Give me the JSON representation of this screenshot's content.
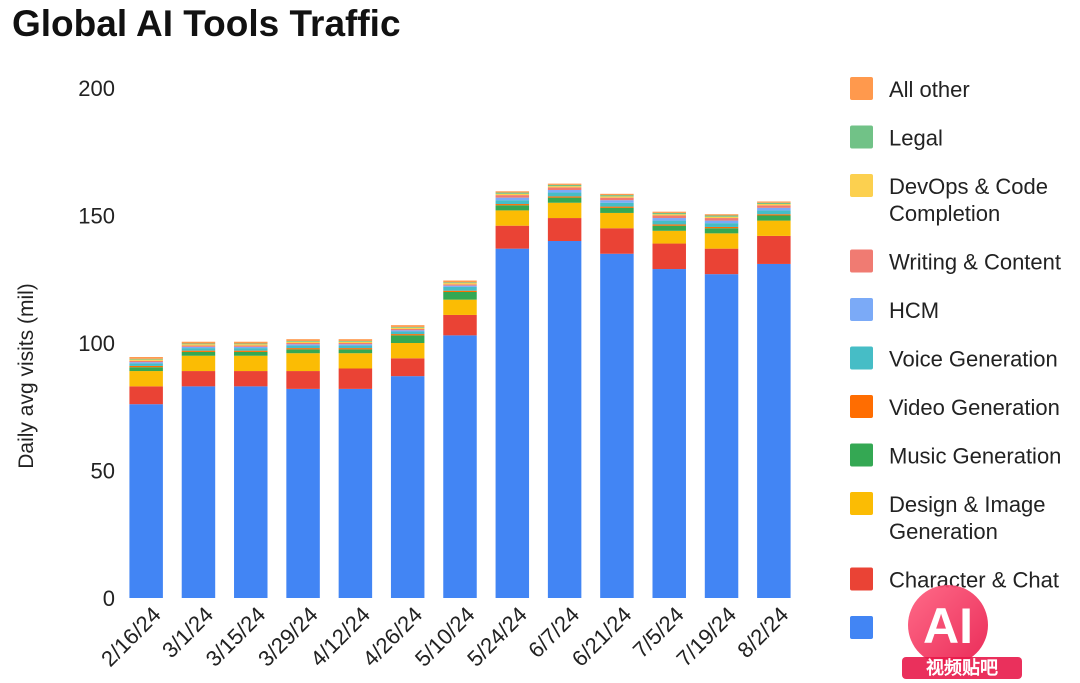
{
  "chart_data": {
    "type": "bar",
    "stacked": true,
    "title": "Global AI Tools Traffic",
    "ylabel": "Daily avg visits (mil)",
    "xlabel": "",
    "ylim": [
      0,
      200
    ],
    "yticks": [
      0,
      50,
      100,
      150,
      200
    ],
    "grid": false,
    "legend_position": "right",
    "categories": [
      "2/16/24",
      "3/1/24",
      "3/15/24",
      "3/29/24",
      "4/12/24",
      "4/26/24",
      "5/10/24",
      "5/24/24",
      "6/7/24",
      "6/21/24",
      "7/5/24",
      "7/19/24",
      "8/2/24"
    ],
    "series": [
      {
        "name": "",
        "color": "#4285f4",
        "values": [
          76,
          83,
          83,
          82,
          82,
          87,
          103,
          137,
          140,
          135,
          129,
          127,
          131
        ]
      },
      {
        "name": "Character & Chat",
        "color": "#ea4335",
        "values": [
          7,
          6,
          6,
          7,
          8,
          7,
          8,
          9,
          9,
          10,
          10,
          10,
          11
        ]
      },
      {
        "name": "Design & Image Generation",
        "color": "#fbbc04",
        "values": [
          6,
          6,
          6,
          7,
          6,
          6,
          6,
          6,
          6,
          6,
          5,
          6,
          6
        ]
      },
      {
        "name": "Music Generation",
        "color": "#34a853",
        "values": [
          1.5,
          1.5,
          1.5,
          1.5,
          1.5,
          3,
          3,
          2,
          2,
          2,
          2,
          2,
          2
        ]
      },
      {
        "name": "Video Generation",
        "color": "#ff6d01",
        "values": [
          0.5,
          0.5,
          0.5,
          0.5,
          0.5,
          0.5,
          0.5,
          0.5,
          0.5,
          0.5,
          0.5,
          0.5,
          0.5
        ]
      },
      {
        "name": "Voice Generation",
        "color": "#46bdc6",
        "values": [
          1,
          1,
          1,
          1,
          1,
          1,
          1.5,
          1.5,
          1.5,
          1.5,
          1.5,
          1.5,
          1.5
        ]
      },
      {
        "name": "HCM",
        "color": "#7baaf7",
        "values": [
          0.5,
          0.5,
          0.5,
          0.5,
          0.5,
          0.5,
          0.5,
          1,
          1,
          1,
          1,
          1,
          1
        ]
      },
      {
        "name": "Writing & Content",
        "color": "#f07b72",
        "values": [
          0.5,
          0.5,
          0.5,
          0.5,
          0.5,
          0.5,
          0.5,
          1,
          1,
          1,
          1,
          1,
          1
        ]
      },
      {
        "name": "DevOps & Code Completion",
        "color": "#fcd04f",
        "values": [
          0.5,
          0.5,
          0.5,
          0.5,
          0.5,
          0.5,
          0.5,
          0.5,
          0.5,
          0.5,
          0.5,
          0.5,
          0.5
        ]
      },
      {
        "name": "Legal",
        "color": "#71c287",
        "values": [
          0.3,
          0.3,
          0.3,
          0.3,
          0.3,
          0.3,
          0.3,
          0.5,
          0.5,
          0.5,
          0.5,
          0.5,
          0.5
        ]
      },
      {
        "name": "All other",
        "color": "#ff994d",
        "values": [
          0.7,
          0.7,
          0.7,
          0.7,
          0.7,
          0.7,
          0.7,
          0.5,
          0.5,
          0.5,
          0.5,
          0.5,
          0.5
        ]
      }
    ],
    "legend": [
      {
        "label": "All other",
        "color": "#ff994d"
      },
      {
        "label": "Legal",
        "color": "#71c287"
      },
      {
        "label": "DevOps & Code Completion",
        "label_lines": [
          "DevOps & Code",
          "Completion"
        ],
        "color": "#fcd04f"
      },
      {
        "label": "Writing & Content",
        "color": "#f07b72"
      },
      {
        "label": "HCM",
        "color": "#7baaf7"
      },
      {
        "label": "Voice Generation",
        "color": "#46bdc6"
      },
      {
        "label": "Video Generation",
        "color": "#ff6d01"
      },
      {
        "label": "Music Generation",
        "color": "#34a853"
      },
      {
        "label": "Design & Image Generation",
        "label_lines": [
          "Design & Image",
          "Generation"
        ],
        "color": "#fbbc04"
      },
      {
        "label": "Character & Chat",
        "color": "#ea4335"
      },
      {
        "label": "",
        "color": "#4285f4"
      }
    ]
  },
  "watermark": {
    "logo_text": "AI",
    "caption": "视频贴吧"
  }
}
